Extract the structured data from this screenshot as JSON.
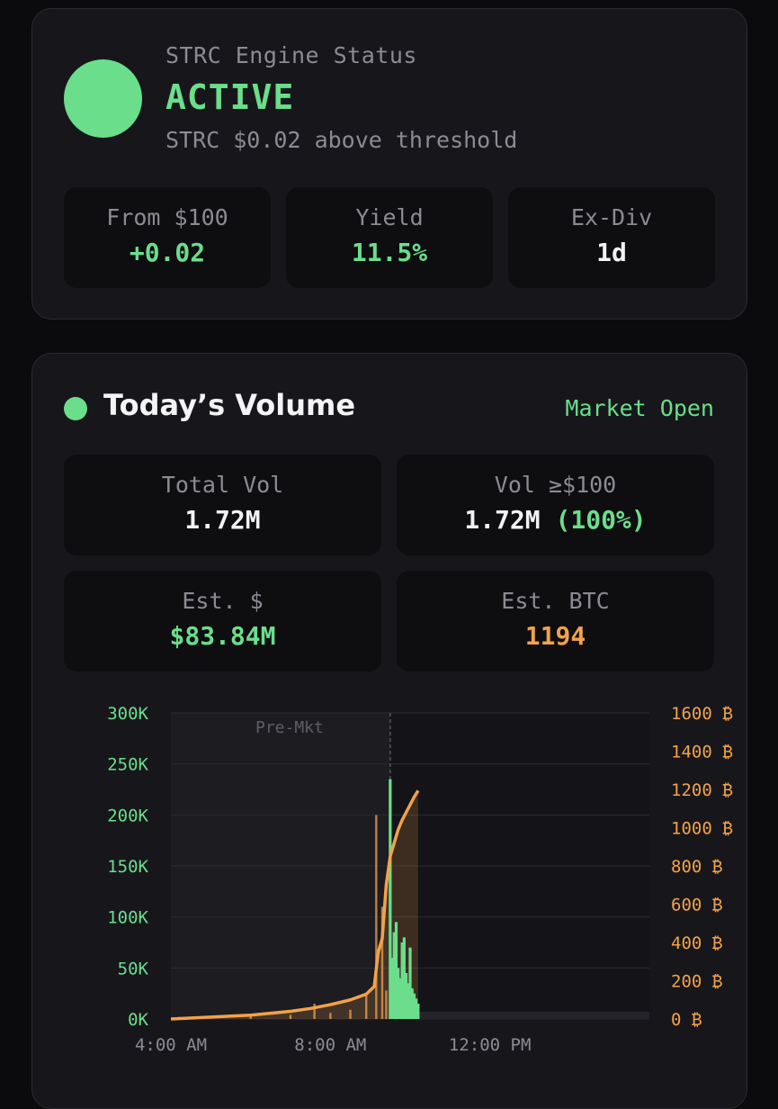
{
  "engine": {
    "label": "STRC Engine Status",
    "status": "ACTIVE",
    "subtitle": "STRC $0.02 above threshold",
    "status_color": "#6bde8c",
    "stats": [
      {
        "label": "From $100",
        "value": "+0.02"
      },
      {
        "label": "Yield",
        "value": "11.5%"
      },
      {
        "label": "Ex-Div",
        "value": "1d"
      }
    ]
  },
  "volume": {
    "title": "Today’s Volume",
    "market_status": "Market Open",
    "tiles": [
      {
        "label": "Total Vol",
        "value": "1.72M"
      },
      {
        "label": "Vol ≥$100",
        "value": "1.72M",
        "extra": "(100%)"
      },
      {
        "label": "Est. $",
        "value": "$83.84M"
      },
      {
        "label": "Est. BTC",
        "value": "1194"
      }
    ]
  },
  "colors": {
    "accent_green": "#6bde8c",
    "accent_orange": "#f3a24a",
    "card_bg": "#17171b",
    "tile_bg": "#0e0e11"
  },
  "chart_data": {
    "type": "bar",
    "premarket_label": "Pre-Mkt",
    "x_tick_labels": [
      "4:00 AM",
      "8:00 AM",
      "12:00 PM"
    ],
    "x_tick_hours": [
      4,
      8,
      12
    ],
    "x_range_hours": [
      4,
      16
    ],
    "premarket_end_hour": 9.5,
    "y_left": {
      "range": [
        0,
        300000
      ],
      "ticks": [
        0,
        50000,
        100000,
        150000,
        200000,
        250000,
        300000
      ],
      "tick_labels": [
        "0K",
        "50K",
        "100K",
        "150K",
        "200K",
        "250K",
        "300K"
      ]
    },
    "y_right": {
      "range": [
        0,
        1600
      ],
      "ticks": [
        0,
        200,
        400,
        600,
        800,
        1000,
        1200,
        1400,
        1600
      ],
      "tick_labels": [
        "0 ₿",
        "200 ₿",
        "400 ₿",
        "600 ₿",
        "800 ₿",
        "1000 ₿",
        "1200 ₿",
        "1400 ₿",
        "1600 ₿"
      ]
    },
    "grid": true,
    "premarket_bars": {
      "hours": [
        4.2,
        6.0,
        7.0,
        7.6,
        8.0,
        8.5,
        8.9,
        9.15,
        9.3,
        9.4
      ],
      "values": [
        2000,
        3000,
        4000,
        15000,
        6000,
        9000,
        25000,
        200000,
        110000,
        28000
      ]
    },
    "regular_bars": {
      "hours": [
        9.5,
        9.55,
        9.6,
        9.65,
        9.7,
        9.75,
        9.8,
        9.85,
        9.9,
        9.95,
        10.0,
        10.05,
        10.1,
        10.15,
        10.2
      ],
      "values": [
        235000,
        60000,
        85000,
        95000,
        50000,
        40000,
        75000,
        80000,
        45000,
        35000,
        70000,
        30000,
        25000,
        20000,
        15000
      ]
    },
    "cumulative_btc": {
      "hours": [
        4.0,
        5.0,
        6.0,
        7.0,
        7.5,
        8.0,
        8.5,
        8.9,
        9.1,
        9.2,
        9.3,
        9.4,
        9.5,
        9.6,
        9.7,
        9.8,
        9.9,
        10.0,
        10.1,
        10.2
      ],
      "values": [
        0,
        10,
        20,
        40,
        55,
        75,
        100,
        130,
        170,
        350,
        420,
        700,
        850,
        920,
        990,
        1040,
        1080,
        1120,
        1160,
        1194
      ]
    }
  }
}
